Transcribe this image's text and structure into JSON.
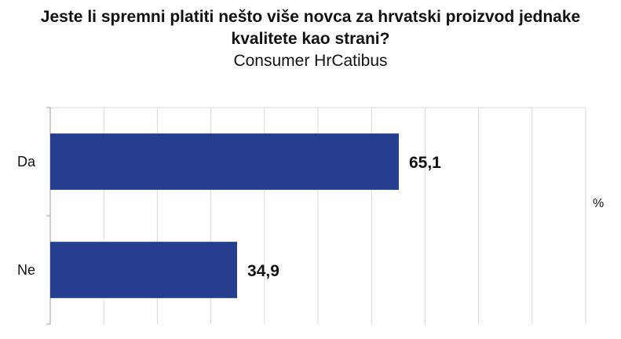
{
  "chart_data": {
    "type": "bar",
    "orientation": "horizontal",
    "title": "Jeste li spremni platiti nešto više novca za hrvatski proizvod jednake kvalitete kao strani?",
    "subtitle": "Consumer HrCatibus",
    "categories": [
      "Da",
      "Ne"
    ],
    "values": [
      65.1,
      34.9
    ],
    "data_labels": [
      "65,1",
      "34,9"
    ],
    "unit_label": "%",
    "xlim": [
      0,
      100
    ],
    "grid": true,
    "legend": "none",
    "bar_color": "#253f8e"
  }
}
